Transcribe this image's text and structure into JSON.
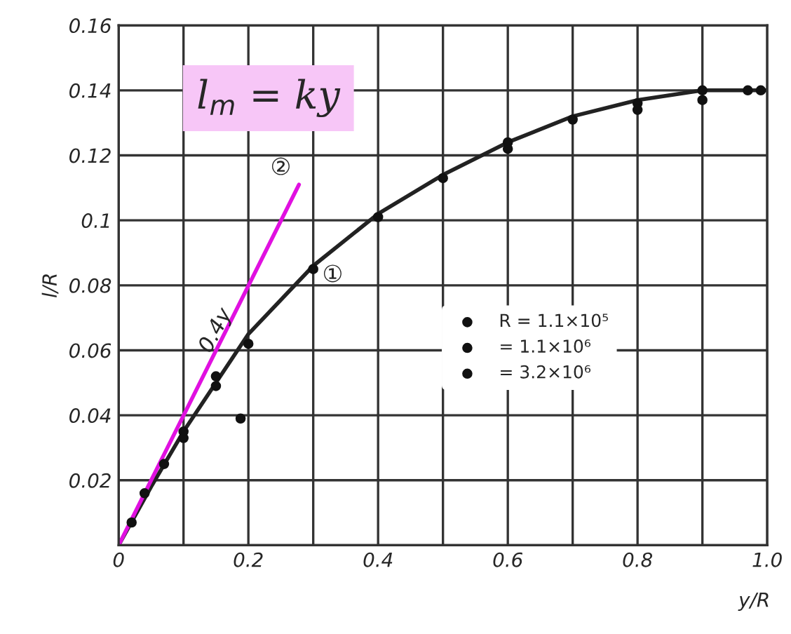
{
  "chart_data": {
    "type": "scatter",
    "xlabel": "y/R",
    "ylabel": "l/R",
    "xlim": [
      0,
      1.0
    ],
    "ylim": [
      0,
      0.16
    ],
    "xticks": [
      0,
      {
        "value": 0.1,
        "label": null
      },
      0.2,
      {
        "value": 0.3,
        "label": null
      },
      0.4,
      {
        "value": 0.5,
        "label": null
      },
      0.6,
      {
        "value": 0.7,
        "label": null
      },
      0.8,
      {
        "value": 0.9,
        "label": null
      },
      {
        "value": 1.0,
        "label": "1.0"
      }
    ],
    "yticks": [
      {
        "value": 0,
        "label": null
      },
      0.02,
      0.04,
      0.06,
      0.08,
      0.1,
      0.12,
      0.14,
      0.16
    ],
    "grid": true,
    "legend": "right",
    "series": [
      {
        "type": "line",
        "color": "#222222",
        "x": [
          0,
          0.05,
          0.1,
          0.15,
          0.2,
          0.3,
          0.4,
          0.5,
          0.6,
          0.7,
          0.8,
          0.9,
          1.0
        ],
        "values": [
          0,
          0.018,
          0.035,
          0.05,
          0.065,
          0.086,
          0.102,
          0.114,
          0.124,
          0.132,
          0.137,
          0.14,
          0.14
        ]
      },
      {
        "type": "line",
        "color": "#e010e0",
        "x": [
          0,
          0.278
        ],
        "values": [
          0,
          0.111
        ]
      },
      {
        "name": "R = 1.1×10⁵",
        "color": "#111111",
        "marker": "circle",
        "x": [
          0.02,
          0.07,
          0.15,
          0.3,
          0.5,
          0.7,
          0.9,
          0.97
        ],
        "values": [
          0.007,
          0.025,
          0.049,
          0.085,
          0.113,
          0.131,
          0.14,
          0.14
        ]
      },
      {
        "name": "= 1.1×10⁶",
        "color": "#111111",
        "marker": "circle",
        "x": [
          0.04,
          0.1,
          0.2,
          0.4,
          0.6,
          0.8,
          0.99
        ],
        "values": [
          0.016,
          0.035,
          0.062,
          0.101,
          0.122,
          0.136,
          0.14
        ]
      },
      {
        "name": "= 3.2×10⁶",
        "color": "#111111",
        "marker": "circle",
        "x": [
          0.1,
          0.15,
          0.188,
          0.6,
          0.8,
          0.9
        ],
        "values": [
          0.033,
          0.052,
          0.039,
          0.124,
          0.134,
          0.137
        ]
      }
    ],
    "annotations": [
      "l$_{m}$ = ky",
      {
        "text": "0.4y",
        "x": 0.15,
        "y": 0.066
      },
      "②",
      "①"
    ]
  }
}
